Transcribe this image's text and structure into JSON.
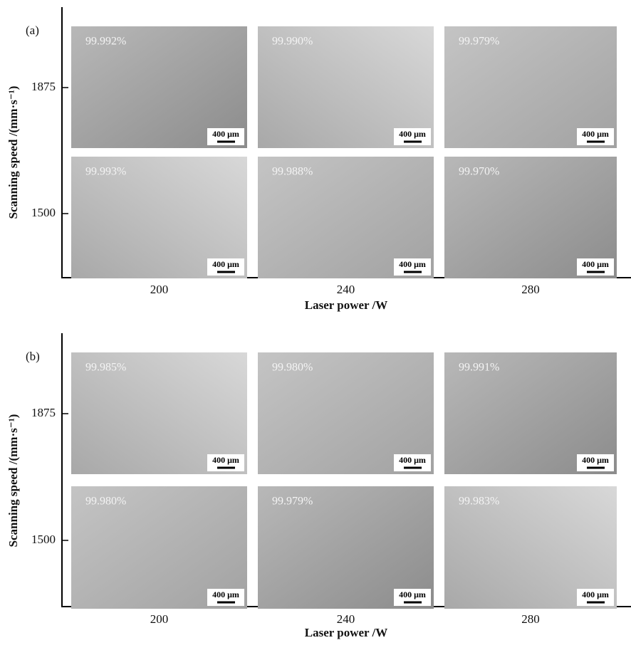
{
  "panels": [
    {
      "label": "(a)",
      "y_label": "Scanning speed /(mm·s⁻¹)",
      "y_ticks": [
        "1875",
        "1500"
      ],
      "x_ticks": [
        "200",
        "240",
        "280"
      ],
      "x_label": "Laser power /W",
      "images": [
        [
          {
            "density": "99.992%",
            "scale": "400 μm"
          },
          {
            "density": "99.990%",
            "scale": "400 μm"
          },
          {
            "density": "99.979%",
            "scale": "400 μm"
          }
        ],
        [
          {
            "density": "99.993%",
            "scale": "400 μm"
          },
          {
            "density": "99.988%",
            "scale": "400 μm"
          },
          {
            "density": "99.970%",
            "scale": "400 μm"
          }
        ]
      ]
    },
    {
      "label": "(b)",
      "y_label": "Scanning speed /(mm·s⁻¹)",
      "y_ticks": [
        "1875",
        "1500"
      ],
      "x_ticks": [
        "200",
        "240",
        "280"
      ],
      "x_label": "Laser power /W",
      "images": [
        [
          {
            "density": "99.985%",
            "scale": "400 μm"
          },
          {
            "density": "99.980%",
            "scale": "400 μm"
          },
          {
            "density": "99.991%",
            "scale": "400 μm"
          }
        ],
        [
          {
            "density": "99.980%",
            "scale": "400 μm"
          },
          {
            "density": "99.979%",
            "scale": "400 μm"
          },
          {
            "density": "99.983%",
            "scale": "400 μm"
          }
        ]
      ]
    }
  ]
}
